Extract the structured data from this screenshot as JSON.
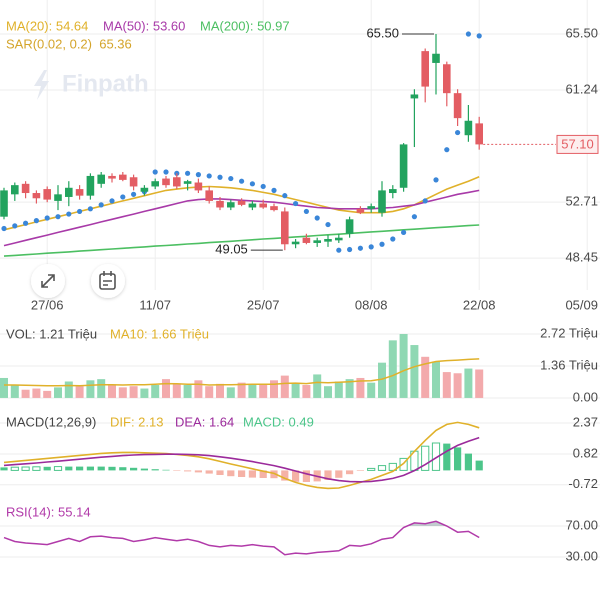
{
  "chart_data": [
    {
      "type": "candlestick",
      "categories": [
        null,
        null,
        null,
        null,
        "27/06",
        null,
        null,
        null,
        null,
        null,
        null,
        null,
        null,
        null,
        "11/07",
        null,
        null,
        null,
        null,
        null,
        null,
        null,
        null,
        null,
        "25/07",
        null,
        null,
        null,
        null,
        null,
        null,
        null,
        null,
        null,
        "08/08",
        null,
        null,
        null,
        null,
        null,
        null,
        null,
        null,
        null,
        "22/08",
        null,
        null,
        null,
        null,
        null,
        null,
        null,
        null,
        null,
        "05/09"
      ],
      "open": [
        51.6,
        53.3,
        54.1,
        53.4,
        53.7,
        52.8,
        53.1,
        53.7,
        53.2,
        54.1,
        54.7,
        54.8,
        54.6,
        53.5,
        53.9,
        54.5,
        54.6,
        54.1,
        54.2,
        53.6,
        52.8,
        52.3,
        52.8,
        52.3,
        52.6,
        52.4,
        52.0,
        49.5,
        50.0,
        49.6,
        49.7,
        49.8,
        50.3,
        52.2,
        52.2,
        51.9,
        53.4,
        53.8,
        60.6,
        64.2,
        63.3,
        63.2,
        61.0,
        57.8,
        58.7,
        null,
        null,
        null,
        null,
        null,
        null,
        null,
        null,
        null,
        null
      ],
      "high": [
        53.8,
        54.2,
        54.3,
        53.6,
        53.9,
        54.0,
        54.3,
        54.0,
        54.9,
        55.0,
        54.9,
        55.0,
        54.8,
        54.0,
        54.5,
        54.7,
        54.9,
        54.4,
        54.5,
        53.9,
        53.1,
        52.9,
        53.0,
        52.8,
        52.9,
        52.6,
        52.3,
        49.9,
        50.3,
        50.0,
        50.2,
        50.3,
        51.6,
        52.4,
        52.6,
        54.3,
        54.0,
        57.2,
        61.3,
        64.4,
        65.5,
        63.4,
        61.3,
        60.1,
        59.2,
        null,
        null,
        null,
        null,
        null,
        null,
        null,
        null,
        null,
        null
      ],
      "low": [
        51.4,
        52.8,
        53.0,
        52.6,
        52.7,
        52.1,
        52.4,
        52.9,
        52.9,
        53.8,
        54.2,
        54.3,
        53.6,
        53.2,
        53.7,
        53.8,
        53.7,
        53.6,
        53.4,
        52.6,
        52.1,
        52.1,
        52.4,
        52.1,
        52.2,
        52.0,
        49.05,
        49.2,
        49.5,
        49.3,
        49.3,
        49.6,
        50.0,
        51.8,
        51.9,
        51.6,
        53.0,
        53.5,
        56.9,
        60.3,
        60.9,
        60.0,
        58.5,
        57.3,
        56.7,
        null,
        null,
        null,
        null,
        null,
        null,
        null,
        null,
        null,
        null
      ],
      "close": [
        53.6,
        54.0,
        53.4,
        53.0,
        52.9,
        53.3,
        53.8,
        53.2,
        54.7,
        54.8,
        54.5,
        54.4,
        53.9,
        53.8,
        54.3,
        54.0,
        53.9,
        54.3,
        53.6,
        52.8,
        52.3,
        52.7,
        52.5,
        52.6,
        52.3,
        52.1,
        49.5,
        49.7,
        49.6,
        49.8,
        49.9,
        50.0,
        51.4,
        51.9,
        52.4,
        53.6,
        53.7,
        57.1,
        60.9,
        61.5,
        64.0,
        61.0,
        59.1,
        58.9,
        57.1,
        null,
        null,
        null,
        null,
        null,
        null,
        null,
        null,
        null,
        null
      ],
      "up_color": "#22a35e",
      "down_color": "#e35d63",
      "series": [
        {
          "name": "MA(20): 54.64",
          "color": "#e0b12a",
          "values": [
            50.6,
            50.8,
            51.0,
            51.2,
            51.4,
            51.6,
            51.8,
            52.0,
            52.2,
            52.4,
            52.6,
            52.8,
            53.0,
            53.2,
            53.4,
            53.6,
            53.7,
            53.8,
            53.85,
            53.9,
            53.85,
            53.8,
            53.7,
            53.6,
            53.45,
            53.3,
            53.1,
            52.9,
            52.7,
            52.5,
            52.3,
            52.1,
            52.0,
            51.9,
            51.9,
            51.9,
            52.0,
            52.2,
            52.5,
            52.9,
            53.3,
            53.7,
            54.0,
            54.3,
            54.64,
            null,
            null,
            null,
            null,
            null,
            null,
            null,
            null,
            null,
            null
          ]
        },
        {
          "name": "MA(50): 53.60",
          "color": "#a83aa8",
          "values": [
            49.4,
            49.6,
            49.8,
            50.0,
            50.2,
            50.4,
            50.6,
            50.8,
            51.0,
            51.2,
            51.4,
            51.6,
            51.8,
            52.0,
            52.2,
            52.4,
            52.6,
            52.8,
            52.9,
            52.95,
            52.95,
            52.9,
            52.85,
            52.8,
            52.75,
            52.7,
            52.6,
            52.5,
            52.4,
            52.3,
            52.25,
            52.2,
            52.2,
            52.2,
            52.2,
            52.25,
            52.3,
            52.4,
            52.5,
            52.7,
            52.9,
            53.1,
            53.3,
            53.45,
            53.6,
            null,
            null,
            null,
            null,
            null,
            null,
            null,
            null,
            null,
            null
          ]
        },
        {
          "name": "MA(200): 50.97",
          "color": "#4cbf62",
          "values": [
            48.6,
            48.65,
            48.71,
            48.76,
            48.82,
            48.87,
            48.92,
            48.98,
            49.03,
            49.09,
            49.14,
            49.19,
            49.25,
            49.3,
            49.36,
            49.41,
            49.46,
            49.52,
            49.57,
            49.63,
            49.68,
            49.73,
            49.79,
            49.84,
            49.9,
            49.95,
            50.0,
            50.06,
            50.11,
            50.17,
            50.22,
            50.27,
            50.33,
            50.38,
            50.44,
            50.49,
            50.54,
            50.6,
            50.65,
            50.71,
            50.76,
            50.81,
            50.87,
            50.92,
            50.97,
            null,
            null,
            null,
            null,
            null,
            null,
            null,
            null,
            null,
            null
          ]
        },
        {
          "name": "SAR(0.02, 0.2)  65.36",
          "style": "dots",
          "color": "#3a86d8",
          "label_color": "#d4a42a",
          "values": [
            50.7,
            50.9,
            51.1,
            51.3,
            51.5,
            51.6,
            51.8,
            52.0,
            52.2,
            52.5,
            52.8,
            53.1,
            53.3,
            53.5,
            55.0,
            55.0,
            54.9,
            54.9,
            54.8,
            54.7,
            54.6,
            54.5,
            54.3,
            54.1,
            53.9,
            53.6,
            53.2,
            52.6,
            52.0,
            51.5,
            51.0,
            49.05,
            49.1,
            49.2,
            49.3,
            49.5,
            49.9,
            50.4,
            51.6,
            52.8,
            54.4,
            56.7,
            58.0,
            65.5,
            65.36,
            null,
            null,
            null,
            null,
            null,
            null,
            null,
            null,
            null,
            null
          ]
        }
      ],
      "ylim": [
        46.02,
        68.09
      ],
      "yticks": [
        48.45,
        52.71,
        61.24,
        {
          "value": 65.5,
          "label": "65.50"
        }
      ],
      "grid": true,
      "annotations": [
        {
          "value": 65.5,
          "label": "65.50"
        },
        {
          "value": 49.05,
          "label": "49.05"
        }
      ],
      "last_price": {
        "value": 57.1,
        "label": "57.10",
        "color": "#e35d63"
      },
      "watermark": "Finpath"
    },
    {
      "type": "bar",
      "legend": "VOL: 1.21 Triệu",
      "values": [
        0.85,
        0.55,
        0.35,
        0.4,
        0.3,
        0.45,
        0.7,
        0.5,
        0.75,
        0.8,
        0.55,
        0.45,
        0.5,
        0.4,
        0.55,
        0.8,
        0.6,
        0.55,
        0.75,
        0.5,
        0.6,
        0.45,
        0.65,
        0.55,
        0.6,
        0.75,
        0.95,
        0.65,
        0.55,
        1.0,
        0.5,
        0.7,
        0.8,
        0.85,
        0.65,
        1.5,
        2.45,
        2.72,
        2.25,
        1.75,
        1.55,
        1.1,
        1.05,
        1.25,
        1.21
      ],
      "up_color": "#8fd8b3",
      "down_color": "#f3aaac",
      "series": [
        {
          "name": "MA10: 1.66 Triệu",
          "color": "#e0b12a",
          "values": [
            0.55,
            0.55,
            0.54,
            0.53,
            0.52,
            0.52,
            0.53,
            0.52,
            0.54,
            0.56,
            0.56,
            0.55,
            0.56,
            0.56,
            0.58,
            0.61,
            0.6,
            0.58,
            0.58,
            0.55,
            0.56,
            0.56,
            0.57,
            0.58,
            0.58,
            0.58,
            0.62,
            0.63,
            0.61,
            0.66,
            0.65,
            0.67,
            0.69,
            0.72,
            0.73,
            0.8,
            0.95,
            1.16,
            1.33,
            1.45,
            1.55,
            1.59,
            1.61,
            1.64,
            1.66
          ]
        }
      ],
      "ylim": [
        -0.3,
        2.89
      ],
      "yticks": [
        {
          "value": 0,
          "label": "0.00"
        },
        {
          "value": 1.36,
          "label": "1.36 Triệu"
        },
        {
          "value": 2.72,
          "label": "2.72 Triệu"
        }
      ],
      "grid": true
    },
    {
      "type": "macd",
      "title": "MACD(12,26,9)",
      "series": [
        {
          "name": "DIF: 2.13",
          "color": "#e0b12a",
          "values": [
            0.4,
            0.45,
            0.5,
            0.55,
            0.6,
            0.65,
            0.7,
            0.75,
            0.8,
            0.85,
            0.88,
            0.9,
            0.9,
            0.88,
            0.86,
            0.84,
            0.8,
            0.75,
            0.68,
            0.58,
            0.45,
            0.32,
            0.2,
            0.08,
            -0.04,
            -0.15,
            -0.4,
            -0.6,
            -0.75,
            -0.85,
            -0.9,
            -0.88,
            -0.75,
            -0.6,
            -0.45,
            -0.25,
            -0.05,
            0.35,
            0.95,
            1.5,
            2.0,
            2.3,
            2.4,
            2.3,
            2.13
          ]
        },
        {
          "name": "DEA: 1.64",
          "color": "#9b2a9b",
          "values": [
            0.25,
            0.29,
            0.33,
            0.37,
            0.42,
            0.46,
            0.51,
            0.56,
            0.61,
            0.66,
            0.7,
            0.74,
            0.77,
            0.79,
            0.8,
            0.81,
            0.81,
            0.8,
            0.78,
            0.74,
            0.68,
            0.61,
            0.53,
            0.44,
            0.34,
            0.24,
            0.11,
            -0.03,
            -0.17,
            -0.3,
            -0.42,
            -0.51,
            -0.56,
            -0.57,
            -0.55,
            -0.49,
            -0.4,
            -0.25,
            -0.01,
            0.29,
            0.63,
            0.96,
            1.25,
            1.46,
            1.64
          ]
        }
      ],
      "histogram": {
        "name": "MACD: 0.49",
        "up_color": "#4cc58a",
        "down_color": "#f5b2a6",
        "values": [
          0.15,
          0.16,
          0.17,
          0.18,
          0.18,
          0.19,
          0.19,
          0.19,
          0.19,
          0.19,
          0.18,
          0.16,
          0.13,
          0.09,
          0.06,
          0.03,
          -0.01,
          -0.05,
          -0.1,
          -0.16,
          -0.23,
          -0.29,
          -0.33,
          -0.36,
          -0.38,
          -0.39,
          -0.51,
          -0.57,
          -0.58,
          -0.55,
          -0.48,
          -0.37,
          -0.19,
          -0.03,
          0.1,
          0.24,
          0.35,
          0.6,
          0.96,
          1.21,
          1.37,
          1.34,
          1.15,
          0.84,
          0.49
        ]
      },
      "ylim": [
        -1.48,
        2.92
      ],
      "yticks": [
        -0.72,
        0.82,
        2.37
      ],
      "grid": true
    },
    {
      "type": "line",
      "series": [
        {
          "name": "RSI(14): 55.14",
          "color": "#b13aa9",
          "values": [
            55,
            50,
            48,
            47,
            46,
            50,
            54,
            50,
            56,
            57,
            55,
            54,
            50,
            52,
            55,
            53,
            51,
            53,
            50,
            45,
            43,
            45,
            44,
            46,
            44,
            43,
            33,
            35,
            34,
            36,
            37,
            38,
            45,
            44,
            47,
            53,
            55,
            68,
            74,
            73,
            76,
            70,
            62,
            63,
            55.14
          ]
        }
      ],
      "ylim": [
        6.8,
        90.6
      ],
      "yticks": [
        {
          "value": 30,
          "label": "30.00"
        },
        {
          "value": 70,
          "label": "70.00"
        }
      ],
      "grid": true
    }
  ]
}
